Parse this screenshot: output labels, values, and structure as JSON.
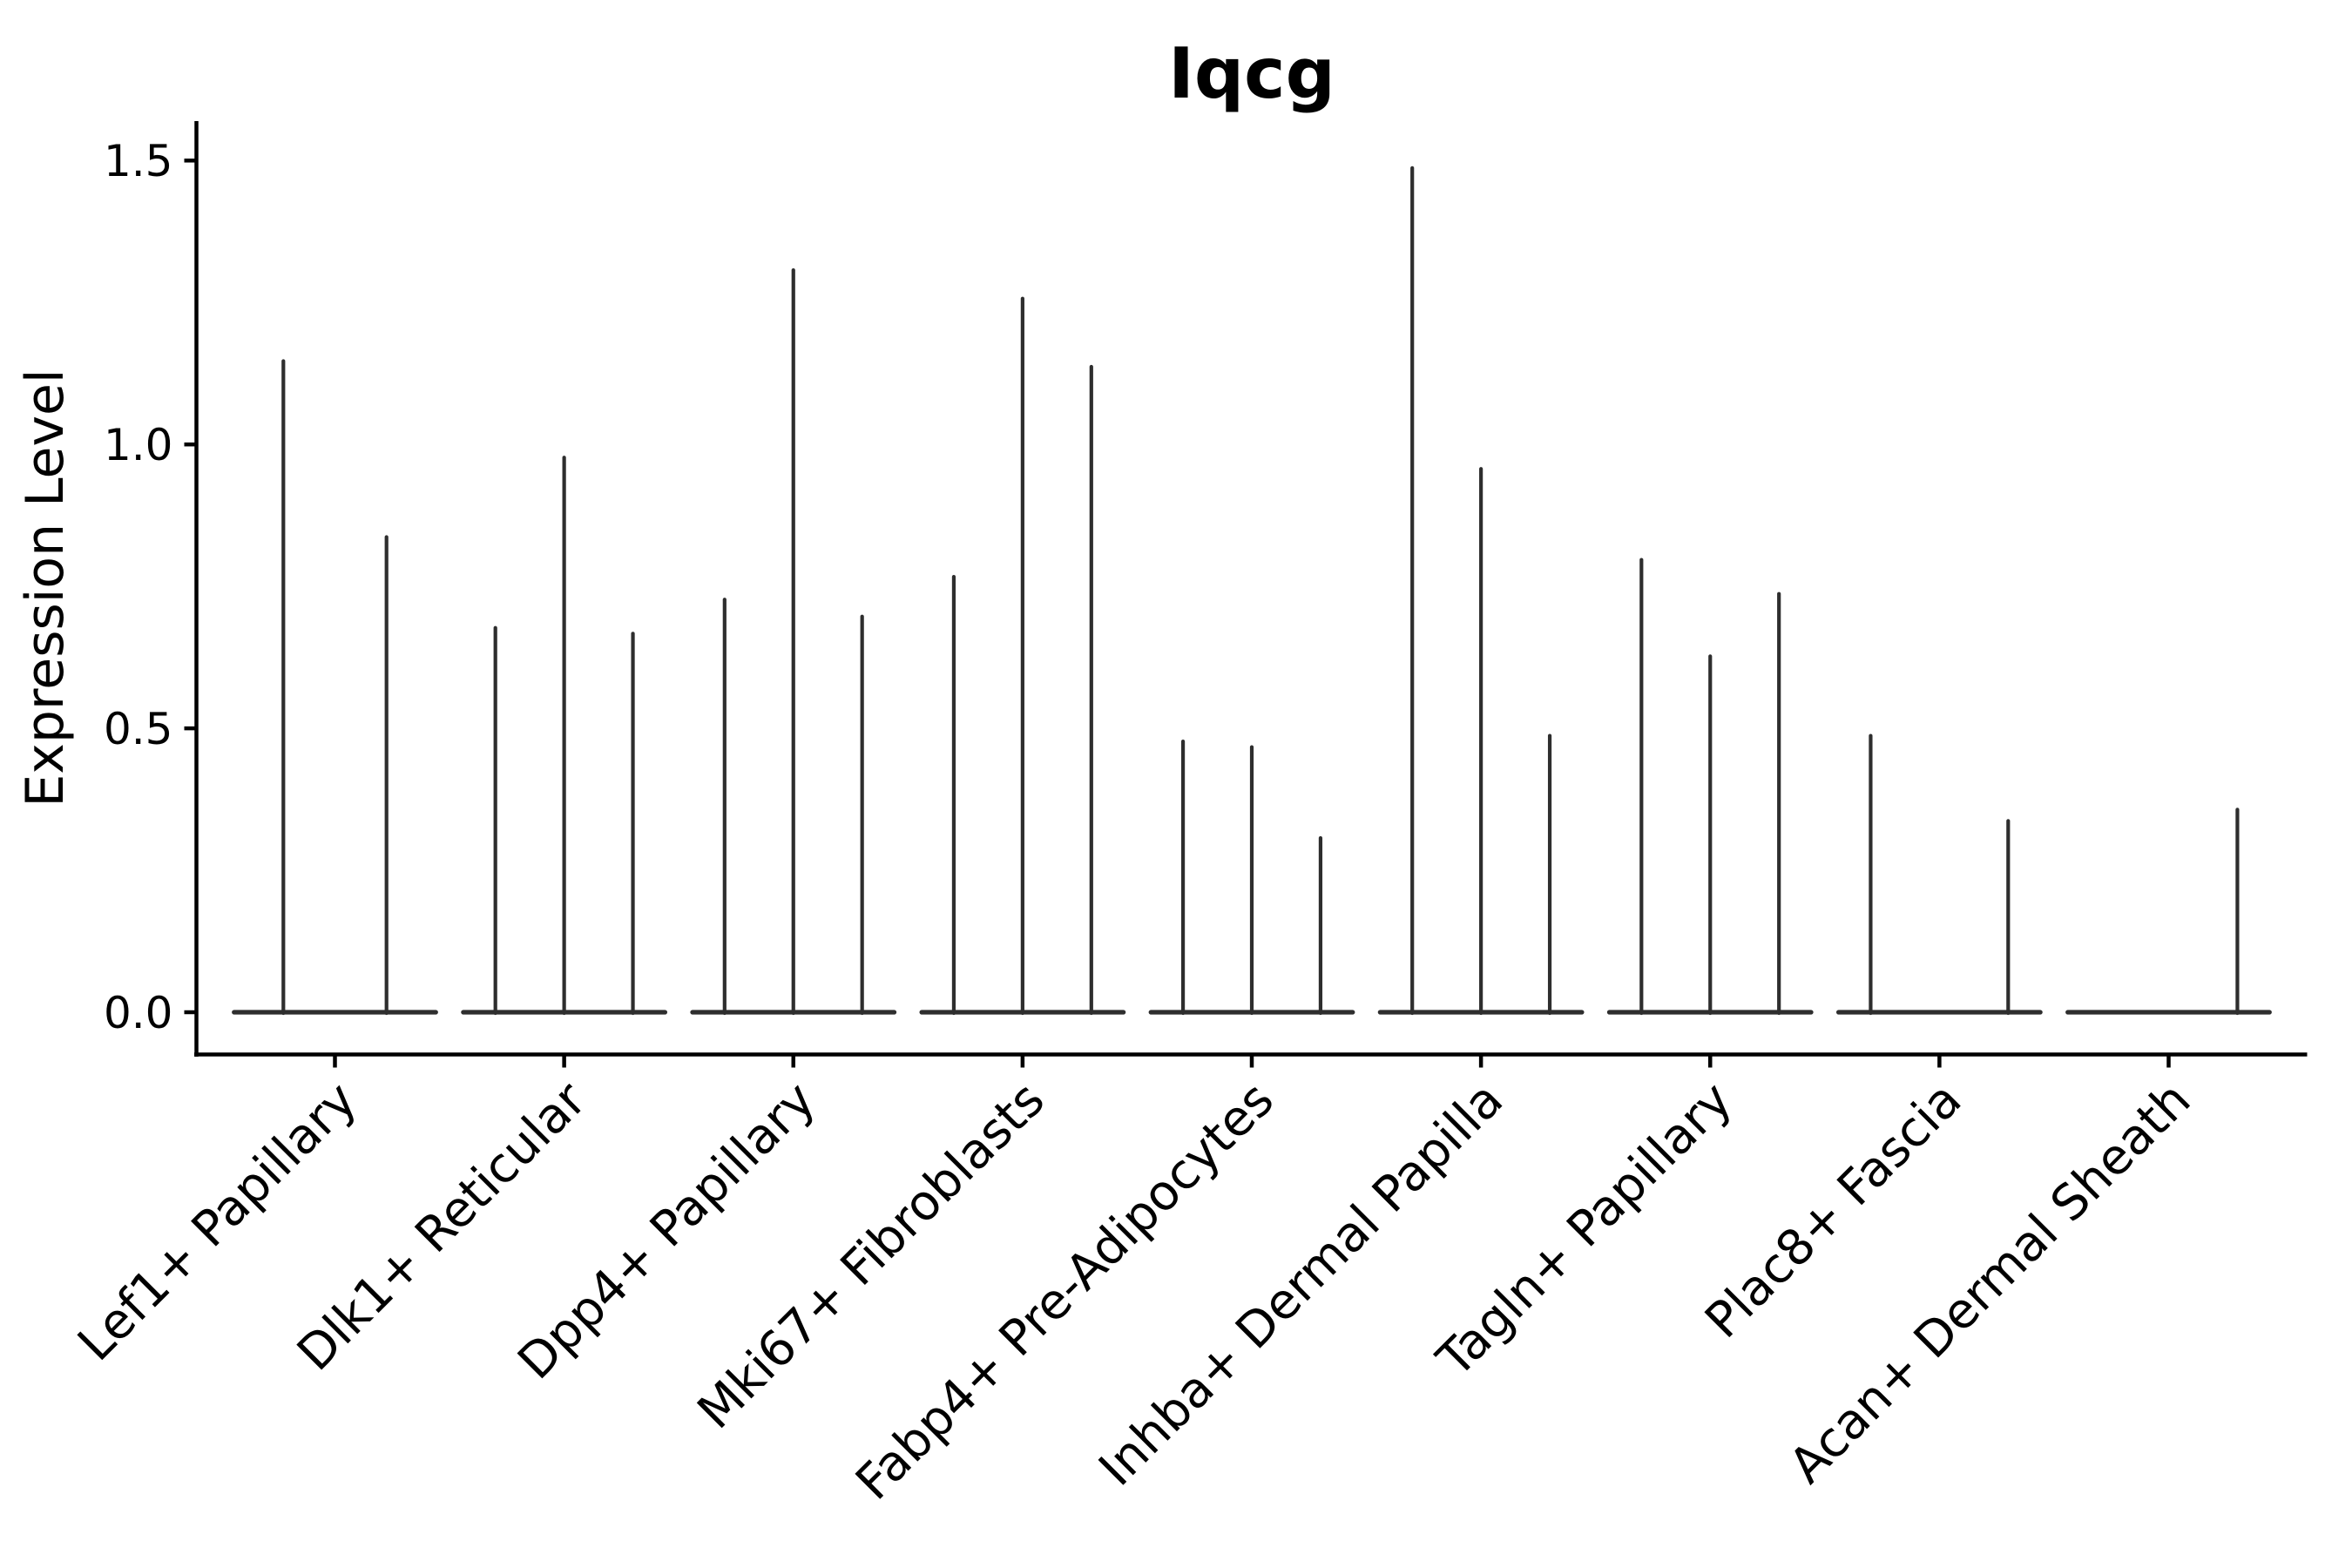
{
  "chart_data": {
    "type": "violin",
    "title": "Iqcg",
    "ylabel": "Expression Level",
    "xlabel": "",
    "ylim": [
      -0.075,
      1.57
    ],
    "yticks": [
      0.0,
      0.5,
      1.0,
      1.5
    ],
    "ytick_labels": [
      "0.0",
      "0.5",
      "1.0",
      "1.5"
    ],
    "grid": false,
    "legend": "none",
    "background_color": "#ffffff",
    "axis_color": "#000000",
    "violin_color": "#2e2e2e",
    "x_tick_rotation_degrees": 45,
    "categories": [
      "Lef1+ Papillary",
      "Dlk1+ Reticular",
      "Dpp4+ Papillary",
      "Mki67+ Fibroblasts",
      "Fabp4+ Pre-Adipocytes",
      "Inhba+ Dermal Papilla",
      "Tagln+ Papillary",
      "Plac8+ Fascia",
      "Acan+ Dermal Sheath"
    ],
    "series": [
      {
        "category": "Lef1+ Papillary",
        "violin_maxima": [
          1.15,
          0.84
        ]
      },
      {
        "category": "Dlk1+ Reticular",
        "violin_maxima": [
          0.68,
          0.98,
          0.67
        ]
      },
      {
        "category": "Dpp4+ Papillary",
        "violin_maxima": [
          0.73,
          1.31,
          0.7
        ]
      },
      {
        "category": "Mki67+ Fibroblasts",
        "violin_maxima": [
          0.77,
          1.26,
          1.14
        ]
      },
      {
        "category": "Fabp4+ Pre-Adipocytes",
        "violin_maxima": [
          0.48,
          0.47,
          0.31
        ]
      },
      {
        "category": "Inhba+ Dermal Papilla",
        "violin_maxima": [
          1.49,
          0.96,
          0.49
        ]
      },
      {
        "category": "Tagln+ Papillary",
        "violin_maxima": [
          0.8,
          0.63,
          0.74
        ]
      },
      {
        "category": "Plac8+ Fascia",
        "violin_maxima": [
          0.49,
          0.0,
          0.34
        ]
      },
      {
        "category": "Acan+ Dermal Sheath",
        "violin_maxima": [
          0.0,
          0.0,
          0.36
        ]
      }
    ]
  }
}
